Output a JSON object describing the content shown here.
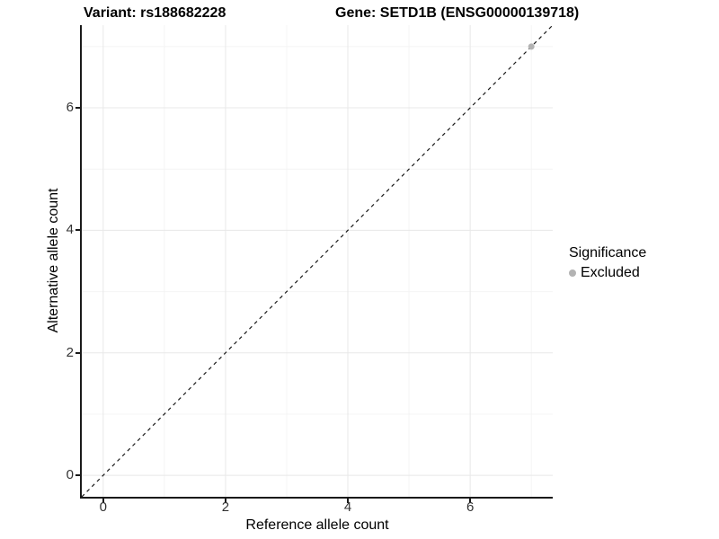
{
  "titles": {
    "variant": "Variant: rs188682228",
    "gene": "Gene: SETD1B (ENSG00000139718)"
  },
  "chart_data": {
    "type": "scatter",
    "title_left": "Variant: rs188682228",
    "title_right": "Gene: SETD1B (ENSG00000139718)",
    "xlabel": "Reference allele count",
    "ylabel": "Alternative allele count",
    "xlim": [
      -0.35,
      7.35
    ],
    "ylim": [
      -0.35,
      7.35
    ],
    "x_ticks": [
      0,
      2,
      4,
      6
    ],
    "y_ticks": [
      0,
      2,
      4,
      6
    ],
    "x_minor_breaks": [
      1,
      3,
      5,
      7
    ],
    "y_minor_breaks": [
      1,
      3,
      5,
      7
    ],
    "grid": "major and minor, light gray on white",
    "points": [
      {
        "x": 7,
        "y": 7,
        "series": "Excluded"
      }
    ],
    "reference_line": {
      "slope": 1,
      "intercept": 0,
      "style": "dashed",
      "color": "#1a1a1a"
    },
    "legend": {
      "title": "Significance",
      "position": "right",
      "entries": [
        {
          "label": "Excluded",
          "color": "#b3b3b3"
        }
      ]
    },
    "colors": {
      "point": "#b3b3b3",
      "axis_line": "#1a1a1a",
      "grid_major": "#e8e8e8",
      "grid_minor": "#f4f4f4",
      "tick_label": "#333333",
      "title": "#000000"
    }
  }
}
